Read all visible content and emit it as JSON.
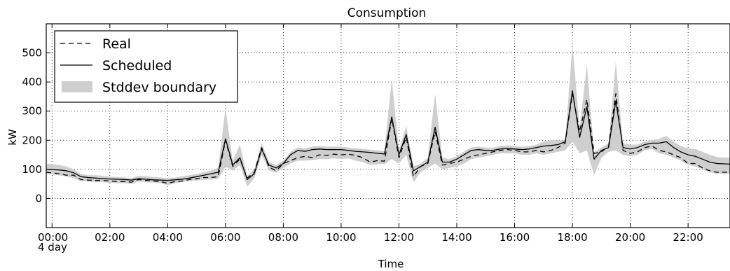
{
  "chart_data": {
    "type": "line",
    "title": "Consumption",
    "xlabel": "Time",
    "ylabel": "kW",
    "xlim": [
      -0.2,
      23.45
    ],
    "ylim": [
      -100,
      600
    ],
    "x_ticks": [
      {
        "value": 0,
        "label": "00:00"
      },
      {
        "value": 2,
        "label": "02:00"
      },
      {
        "value": 4,
        "label": "04:00"
      },
      {
        "value": 6,
        "label": "06:00"
      },
      {
        "value": 8,
        "label": "08:00"
      },
      {
        "value": 10,
        "label": "10:00"
      },
      {
        "value": 12,
        "label": "12:00"
      },
      {
        "value": 14,
        "label": "14:00"
      },
      {
        "value": 16,
        "label": "16:00"
      },
      {
        "value": 18,
        "label": "18:00"
      },
      {
        "value": 20,
        "label": "20:00"
      },
      {
        "value": 22,
        "label": "22:00"
      }
    ],
    "x_sublabel": "4 day",
    "y_ticks": [
      0,
      100,
      200,
      300,
      400,
      500
    ],
    "grid": true,
    "legend_position": "top-left",
    "x": [
      -0.2,
      0.25,
      0.5,
      0.75,
      1,
      1.25,
      1.5,
      1.75,
      2,
      2.25,
      2.5,
      2.75,
      3,
      3.25,
      3.5,
      3.75,
      4,
      4.25,
      4.5,
      4.75,
      5,
      5.25,
      5.5,
      5.75,
      6,
      6.25,
      6.5,
      6.75,
      7,
      7.25,
      7.5,
      7.75,
      8,
      8.25,
      8.5,
      8.75,
      9,
      9.25,
      9.5,
      9.75,
      10,
      10.25,
      10.5,
      10.75,
      11,
      11.25,
      11.5,
      11.75,
      12,
      12.25,
      12.5,
      12.75,
      13,
      13.25,
      13.5,
      13.75,
      14,
      14.25,
      14.5,
      14.75,
      15,
      15.25,
      15.5,
      15.75,
      16,
      16.25,
      16.5,
      16.75,
      17,
      17.25,
      17.5,
      17.75,
      18,
      18.25,
      18.5,
      18.75,
      19,
      19.25,
      19.5,
      19.75,
      20,
      20.25,
      20.5,
      20.75,
      21,
      21.25,
      21.5,
      21.75,
      22,
      22.25,
      22.5,
      22.75,
      23,
      23.45
    ],
    "series": [
      {
        "name": "Real",
        "style": "dashed",
        "color": "#000000",
        "values": [
          90,
          85,
          80,
          80,
          65,
          63,
          62,
          62,
          60,
          58,
          58,
          56,
          65,
          62,
          60,
          58,
          52,
          58,
          60,
          65,
          68,
          72,
          72,
          75,
          200,
          110,
          135,
          70,
          90,
          175,
          108,
          95,
          120,
          130,
          140,
          145,
          140,
          150,
          148,
          152,
          150,
          152,
          148,
          140,
          125,
          130,
          128,
          275,
          140,
          210,
          75,
          110,
          120,
          230,
          115,
          120,
          125,
          135,
          145,
          150,
          155,
          160,
          165,
          168,
          165,
          160,
          160,
          165,
          160,
          165,
          175,
          190,
          360,
          230,
          340,
          155,
          160,
          180,
          360,
          165,
          155,
          160,
          175,
          180,
          165,
          160,
          150,
          140,
          120,
          120,
          105,
          95,
          90,
          90
        ],
        "labels": []
      },
      {
        "name": "Scheduled",
        "style": "solid",
        "color": "#000000",
        "values": [
          100,
          98,
          95,
          88,
          75,
          72,
          70,
          68,
          67,
          66,
          65,
          63,
          68,
          66,
          64,
          63,
          62,
          64,
          66,
          70,
          75,
          80,
          85,
          90,
          205,
          115,
          140,
          65,
          85,
          170,
          115,
          105,
          120,
          150,
          165,
          162,
          168,
          170,
          168,
          168,
          168,
          165,
          162,
          160,
          158,
          155,
          153,
          280,
          150,
          220,
          95,
          110,
          125,
          245,
          125,
          125,
          135,
          150,
          165,
          168,
          165,
          165,
          170,
          172,
          170,
          168,
          170,
          175,
          180,
          182,
          185,
          195,
          370,
          210,
          315,
          135,
          165,
          175,
          335,
          175,
          170,
          175,
          185,
          190,
          190,
          195,
          175,
          160,
          150,
          145,
          135,
          125,
          120,
          118
        ],
        "labels": []
      }
    ],
    "band": {
      "name": "Stddev boundary",
      "color": "#cfcfcf",
      "upper": [
        120,
        115,
        110,
        100,
        85,
        80,
        80,
        78,
        75,
        74,
        72,
        70,
        78,
        76,
        74,
        72,
        70,
        72,
        76,
        80,
        84,
        90,
        96,
        105,
        310,
        130,
        185,
        78,
        100,
        190,
        125,
        115,
        130,
        160,
        175,
        172,
        178,
        180,
        178,
        178,
        178,
        175,
        172,
        170,
        168,
        165,
        163,
        410,
        165,
        250,
        110,
        120,
        140,
        360,
        140,
        135,
        145,
        162,
        175,
        178,
        175,
        175,
        180,
        182,
        180,
        178,
        180,
        185,
        195,
        200,
        200,
        200,
        530,
        240,
        460,
        160,
        175,
        190,
        470,
        190,
        185,
        185,
        195,
        200,
        205,
        215,
        195,
        180,
        172,
        170,
        160,
        150,
        142,
        140
      ],
      "lower": [
        85,
        80,
        75,
        70,
        60,
        58,
        56,
        56,
        54,
        52,
        52,
        50,
        58,
        56,
        55,
        52,
        46,
        52,
        56,
        60,
        62,
        64,
        65,
        68,
        110,
        95,
        115,
        40,
        70,
        150,
        98,
        88,
        105,
        120,
        130,
        130,
        132,
        135,
        135,
        138,
        135,
        138,
        130,
        125,
        115,
        118,
        118,
        135,
        120,
        150,
        55,
        90,
        105,
        120,
        100,
        105,
        110,
        120,
        135,
        140,
        145,
        150,
        155,
        155,
        155,
        150,
        150,
        155,
        150,
        155,
        160,
        165,
        195,
        155,
        165,
        80,
        140,
        160,
        165,
        150,
        145,
        150,
        165,
        170,
        155,
        150,
        140,
        130,
        115,
        110,
        100,
        90,
        85,
        85
      ]
    }
  },
  "legend": {
    "items": [
      {
        "label": "Real",
        "style": "dashed"
      },
      {
        "label": "Scheduled",
        "style": "solid"
      },
      {
        "label": "Stddev boundary",
        "style": "band"
      }
    ]
  }
}
